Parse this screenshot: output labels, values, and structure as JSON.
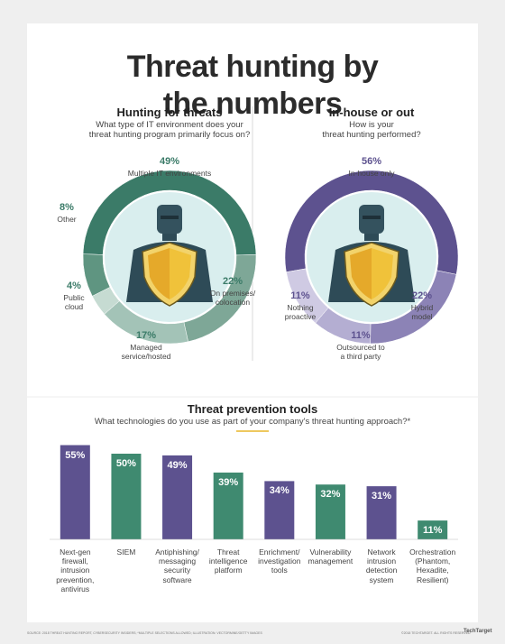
{
  "title": "Threat hunting by the numbers",
  "chart_data": [
    {
      "type": "donut",
      "title": "Hunting for threats",
      "subtitle": "What type of IT environment does your\nthreat hunting program primarily focus on?",
      "categories": [
        "Multiple IT environments",
        "On premises/\ncolocation",
        "Managed\nservice/hosted",
        "Public\ncloud",
        "Other"
      ],
      "values": [
        49,
        22,
        17,
        4,
        8
      ],
      "value_labels": [
        "49%",
        "22%",
        "17%",
        "4%",
        "8%"
      ],
      "colors": [
        "#3b7b68",
        "#7ea797",
        "#a3c3b7",
        "#c6dbd2",
        "#5f9581"
      ]
    },
    {
      "type": "donut",
      "title": "In-house or out",
      "subtitle": "How is your\nthreat hunting performed?",
      "categories": [
        "In-house only",
        "Hybrid\nmodel",
        "Outsourced to\na third party",
        "Nothing\nproactive"
      ],
      "values": [
        56,
        22,
        11,
        11
      ],
      "value_labels": [
        "56%",
        "22%",
        "11%",
        "11%"
      ],
      "colors": [
        "#5d528f",
        "#8c83b6",
        "#b4aed2",
        "#cfcae3"
      ]
    },
    {
      "type": "bar",
      "title": "Threat prevention tools",
      "subtitle": "What technologies do you use as part of your company's threat hunting approach?*",
      "categories": [
        "Next-gen\nfirewall,\nintrusion\nprevention,\nantivirus",
        "SIEM",
        "Antiphishing/\nmessaging\nsecurity\nsoftware",
        "Threat\nintelligence\nplatform",
        "Enrichment/\ninvestigation\ntools",
        "Vulnerability\nmanagement",
        "Network\nintrusion\ndetection\nsystem",
        "Orchestration\n(Phantom,\nHexadite,\nResilient)"
      ],
      "values": [
        55,
        50,
        49,
        39,
        34,
        32,
        31,
        11
      ],
      "value_labels": [
        "55%",
        "50%",
        "49%",
        "39%",
        "34%",
        "32%",
        "31%",
        "11%"
      ],
      "colors": [
        "#5d528f",
        "#3f8a70",
        "#5d528f",
        "#3f8a70",
        "#5d528f",
        "#3f8a70",
        "#5d528f",
        "#3f8a70"
      ],
      "ylim": [
        0,
        60
      ]
    }
  ],
  "footer": {
    "source": "SOURCE: 2018 THREAT HUNTING REPORT, CYBERSECURITY INSIDERS; *MULTIPLE SELECTIONS ALLOWED; ILLUSTRATION: VECTORMINE/GETTY IMAGES",
    "copyright": "©2018 TECHTARGET. ALL RIGHTS RESERVED",
    "logo": "TechTarget"
  }
}
